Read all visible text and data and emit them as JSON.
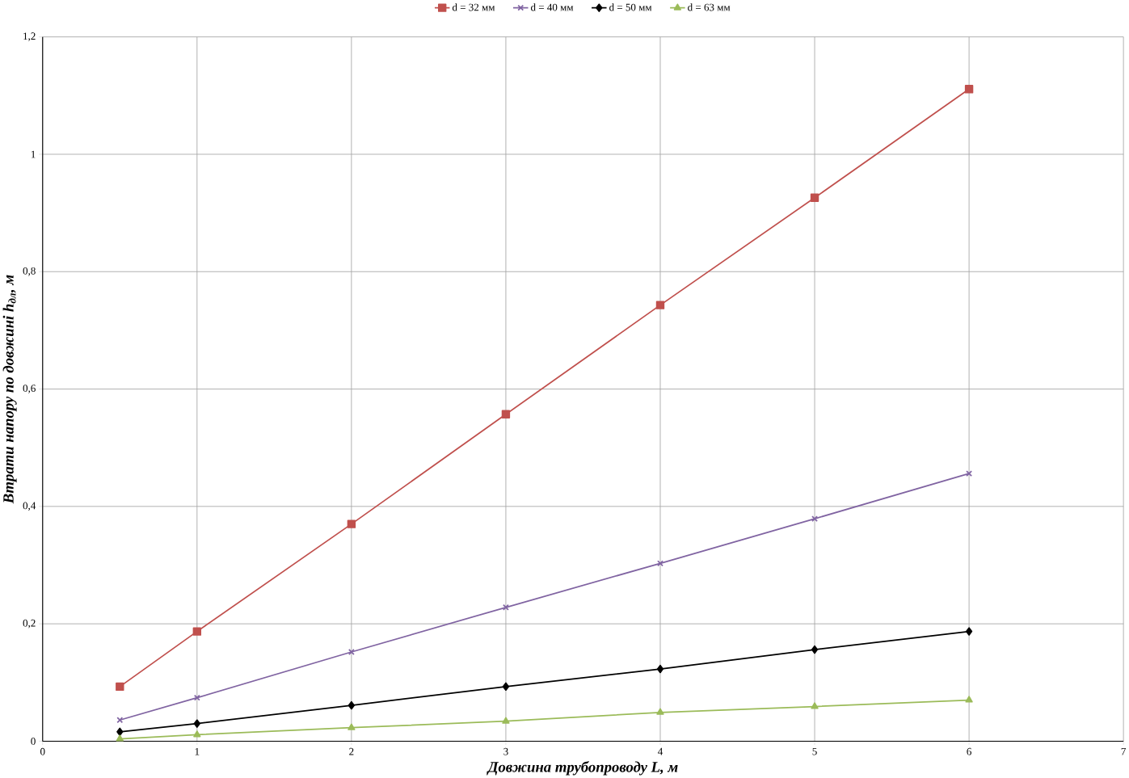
{
  "chart_data": {
    "type": "line",
    "xlabel": "Довжина трубопроводу  L, м",
    "ylabel": "Втрати напору по довжині  h$_{дл}$, м",
    "x": [
      0.5,
      1,
      2,
      3,
      4,
      5,
      6
    ],
    "series": [
      {
        "name": "d = 32 мм",
        "color": "#c0504d",
        "marker": "square",
        "values": [
          0.093,
          0.187,
          0.37,
          0.557,
          0.743,
          0.926,
          1.111
        ]
      },
      {
        "name": "d = 40 мм",
        "color": "#8064a2",
        "marker": "cross",
        "values": [
          0.036,
          0.074,
          0.152,
          0.228,
          0.303,
          0.379,
          0.456
        ]
      },
      {
        "name": "d = 50 мм",
        "color": "#000000",
        "marker": "diamond",
        "values": [
          0.016,
          0.03,
          0.061,
          0.093,
          0.123,
          0.156,
          0.187
        ]
      },
      {
        "name": "d = 63 мм",
        "color": "#9bbb59",
        "marker": "triangle",
        "values": [
          0.004,
          0.011,
          0.023,
          0.034,
          0.049,
          0.059,
          0.07
        ]
      }
    ],
    "xlim": [
      0,
      7
    ],
    "ylim": [
      0,
      1.2
    ],
    "xticks": [
      0,
      1,
      2,
      3,
      4,
      5,
      6,
      7
    ],
    "yticks": [
      0,
      {
        "value": 0.2,
        "label": "0,2"
      },
      {
        "value": 0.4,
        "label": "0,4"
      },
      {
        "value": 0.6,
        "label": "0,6"
      },
      {
        "value": 0.8,
        "label": "0,8"
      },
      1,
      {
        "value": 1.2,
        "label": "1,2"
      }
    ],
    "grid": true,
    "legend": "top",
    "line_style": "solid"
  }
}
